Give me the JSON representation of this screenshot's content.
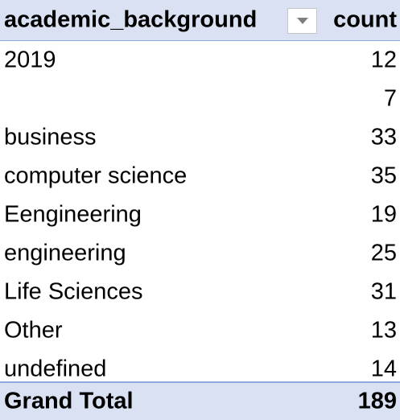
{
  "header": {
    "row_label": "academic_background",
    "value_label": "count",
    "filter_icon": "chevron-down-icon"
  },
  "rows": [
    {
      "label": "2019",
      "value": "12"
    },
    {
      "label": "",
      "value": "7"
    },
    {
      "label": "business",
      "value": "33"
    },
    {
      "label": "computer science",
      "value": "35"
    },
    {
      "label": "Eengineering",
      "value": "19"
    },
    {
      "label": "engineering",
      "value": "25"
    },
    {
      "label": "Life Sciences",
      "value": "31"
    },
    {
      "label": "Other",
      "value": "13"
    },
    {
      "label": "undefined",
      "value": "14"
    }
  ],
  "total": {
    "label": "Grand Total",
    "value": "189"
  },
  "colors": {
    "header_background": "#d9e1f2",
    "border": "#8ea9db"
  }
}
